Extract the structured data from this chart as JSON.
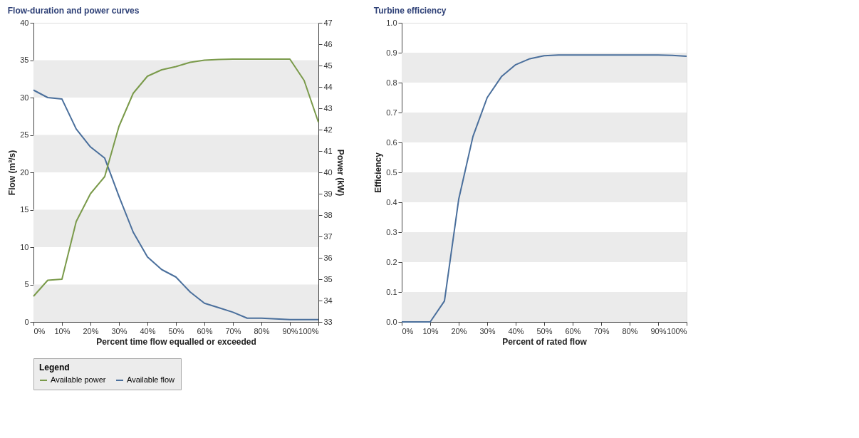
{
  "chart_data": [
    {
      "type": "line",
      "title": "Flow-duration and power curves",
      "xlabel": "Percent time flow equalled or exceeded",
      "ylabel": "Flow (m³/s)",
      "y2label": "Power (kW)",
      "legend_title": "Legend",
      "legend": "bottom",
      "grid": false,
      "marker": "none",
      "line_style": "solid",
      "x": [
        0,
        5,
        10,
        15,
        20,
        25,
        30,
        35,
        40,
        45,
        50,
        55,
        60,
        65,
        70,
        75,
        80,
        85,
        90,
        95,
        100
      ],
      "series": [
        {
          "name": "Available power",
          "color": "#7a9a4a",
          "axis": "y2",
          "values": [
            34.2,
            34.95,
            35.0,
            37.7,
            39.0,
            39.8,
            42.15,
            43.7,
            44.5,
            44.8,
            44.95,
            45.15,
            45.25,
            45.28,
            45.3,
            45.3,
            45.3,
            45.3,
            45.3,
            44.3,
            42.35
          ]
        },
        {
          "name": "Available flow",
          "color": "#4a6f9c",
          "axis": "y",
          "values": [
            31,
            30,
            29.8,
            25.8,
            23.4,
            21.9,
            16.8,
            12,
            8.7,
            7,
            6,
            4,
            2.5,
            1.9,
            1.3,
            0.5,
            0.5,
            0.4,
            0.3,
            0.3,
            0.3
          ]
        }
      ],
      "xlim": [
        0,
        100
      ],
      "xticks": [
        {
          "value": 0,
          "label": "0%"
        },
        {
          "value": 10,
          "label": "10%"
        },
        {
          "value": 20,
          "label": "20%"
        },
        {
          "value": 30,
          "label": "30%"
        },
        {
          "value": 40,
          "label": "40%"
        },
        {
          "value": 50,
          "label": "50%"
        },
        {
          "value": 60,
          "label": "60%"
        },
        {
          "value": 70,
          "label": "70%"
        },
        {
          "value": 80,
          "label": "80%"
        },
        {
          "value": 90,
          "label": "90%"
        },
        {
          "value": 100,
          "label": "100%"
        }
      ],
      "ylim": [
        0,
        40
      ],
      "yticks": [
        0,
        5,
        10,
        15,
        20,
        25,
        30,
        35,
        40
      ],
      "y2lim": [
        33,
        47
      ],
      "y2ticks": [
        33,
        34,
        35,
        36,
        37,
        38,
        39,
        40,
        41,
        42,
        43,
        44,
        45,
        46,
        47
      ],
      "bands": [
        {
          "axis": "y",
          "from": 0,
          "to": 5,
          "color": "#ebebeb"
        },
        {
          "axis": "y",
          "from": 10,
          "to": 15,
          "color": "#ebebeb"
        },
        {
          "axis": "y",
          "from": 20,
          "to": 25,
          "color": "#ebebeb"
        },
        {
          "axis": "y",
          "from": 30,
          "to": 35,
          "color": "#ebebeb"
        }
      ]
    },
    {
      "type": "line",
      "title": "Turbine efficiency",
      "xlabel": "Percent of rated flow",
      "ylabel": "Efficiency",
      "grid": false,
      "marker": "none",
      "line_style": "solid",
      "x": [
        0,
        5,
        10,
        15,
        20,
        25,
        30,
        35,
        40,
        45,
        50,
        55,
        60,
        65,
        70,
        75,
        80,
        85,
        90,
        95,
        100
      ],
      "series": [
        {
          "color": "#4a6f9c",
          "values": [
            0,
            0,
            0,
            0.07,
            0.41,
            0.62,
            0.75,
            0.82,
            0.86,
            0.88,
            0.89,
            0.892,
            0.892,
            0.892,
            0.892,
            0.892,
            0.892,
            0.892,
            0.892,
            0.891,
            0.888
          ]
        }
      ],
      "xlim": [
        0,
        100
      ],
      "xticks": [
        {
          "value": 0,
          "label": "0%"
        },
        {
          "value": 10,
          "label": "10%"
        },
        {
          "value": 20,
          "label": "20%"
        },
        {
          "value": 30,
          "label": "30%"
        },
        {
          "value": 40,
          "label": "40%"
        },
        {
          "value": 50,
          "label": "50%"
        },
        {
          "value": 60,
          "label": "60%"
        },
        {
          "value": 70,
          "label": "70%"
        },
        {
          "value": 80,
          "label": "80%"
        },
        {
          "value": 90,
          "label": "90%"
        },
        {
          "value": 100,
          "label": "100%"
        }
      ],
      "ylim": [
        0,
        1
      ],
      "yticks": [
        {
          "value": 0,
          "label": "0.0"
        },
        0.1,
        0.2,
        0.3,
        0.4,
        0.5,
        0.6,
        0.7,
        0.8,
        0.9,
        {
          "value": 1,
          "label": "1.0"
        }
      ],
      "bands": [
        {
          "axis": "y",
          "from": 0,
          "to": 0.1,
          "color": "#ebebeb"
        },
        {
          "axis": "y",
          "from": 0.2,
          "to": 0.3,
          "color": "#ebebeb"
        },
        {
          "axis": "y",
          "from": 0.4,
          "to": 0.5,
          "color": "#ebebeb"
        },
        {
          "axis": "y",
          "from": 0.6,
          "to": 0.7,
          "color": "#ebebeb"
        },
        {
          "axis": "y",
          "from": 0.8,
          "to": 0.9,
          "color": "#ebebeb"
        }
      ]
    }
  ]
}
